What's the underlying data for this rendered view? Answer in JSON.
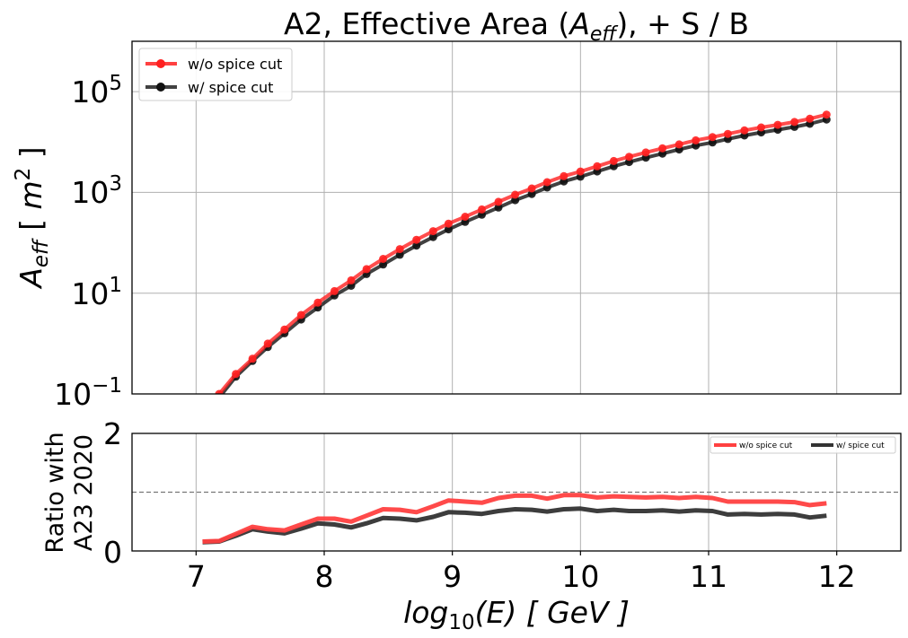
{
  "chart_data": [
    {
      "type": "line",
      "title_main": "A2, Effective Area (",
      "title_sym": "A",
      "title_sub": "eff",
      "title_tail": "), + S / B",
      "ylabel_main": "A",
      "ylabel_sub": "eff",
      "ylabel_tail": " [ ",
      "ylabel_unit": "m",
      "ylabel_exp": "2",
      "ylabel_close": " ]",
      "yscale": "log",
      "xlim": [
        6.5,
        12.5
      ],
      "ylim": [
        0.1,
        1000000
      ],
      "y_ticks": [
        {
          "base": "10",
          "exp": "−1",
          "value": 0.1
        },
        {
          "base": "10",
          "exp": "1",
          "value": 10
        },
        {
          "base": "10",
          "exp": "3",
          "value": 1000
        },
        {
          "base": "10",
          "exp": "5",
          "value": 100000
        }
      ],
      "grid": true,
      "legend_position": "top-left",
      "x": [
        7.05,
        7.18,
        7.31,
        7.44,
        7.56,
        7.69,
        7.82,
        7.95,
        8.08,
        8.21,
        8.33,
        8.46,
        8.59,
        8.72,
        8.85,
        8.97,
        9.1,
        9.23,
        9.36,
        9.49,
        9.62,
        9.74,
        9.87,
        10.0,
        10.13,
        10.26,
        10.38,
        10.51,
        10.64,
        10.77,
        10.9,
        11.03,
        11.15,
        11.28,
        11.41,
        11.54,
        11.67,
        11.79,
        11.92
      ],
      "series": [
        {
          "name": "w/o spice cut",
          "color": "#ff2020",
          "values": [
            0.035,
            0.1,
            0.25,
            0.5,
            1.0,
            1.9,
            3.7,
            6.5,
            11,
            18,
            30,
            48,
            75,
            115,
            170,
            240,
            330,
            460,
            650,
            900,
            1200,
            1600,
            2100,
            2600,
            3300,
            4200,
            5100,
            6200,
            7500,
            9000,
            10800,
            12500,
            14500,
            17000,
            19500,
            22000,
            25000,
            29000,
            35000
          ]
        },
        {
          "name": "w/ spice cut",
          "color": "#111111",
          "values": [
            0.03,
            0.085,
            0.22,
            0.45,
            0.85,
            1.6,
            3.0,
            5.2,
            9.0,
            14,
            24,
            37,
            58,
            88,
            130,
            185,
            260,
            360,
            500,
            700,
            930,
            1250,
            1650,
            2050,
            2600,
            3300,
            4000,
            4900,
            5900,
            7100,
            8500,
            9800,
            11500,
            13500,
            15500,
            17500,
            20000,
            23000,
            28000
          ]
        }
      ]
    },
    {
      "type": "line",
      "ylabel_line1": "Ratio with",
      "ylabel_line2": "A23 2020",
      "xlabel_main": "log",
      "xlabel_sub": "10",
      "xlabel_tail": "(E) [ GeV ]",
      "xlim": [
        6.5,
        12.5
      ],
      "ylim": [
        0,
        2
      ],
      "x_ticks": [
        "7",
        "8",
        "9",
        "10",
        "11",
        "12"
      ],
      "y_ticks": [
        "0",
        "2"
      ],
      "reference_line": 1.0,
      "grid": true,
      "legend_position": "top-right",
      "x": [
        7.05,
        7.18,
        7.31,
        7.44,
        7.56,
        7.69,
        7.82,
        7.95,
        8.08,
        8.21,
        8.33,
        8.46,
        8.59,
        8.72,
        8.85,
        8.97,
        9.1,
        9.23,
        9.36,
        9.49,
        9.62,
        9.74,
        9.87,
        10.0,
        10.13,
        10.26,
        10.38,
        10.51,
        10.64,
        10.77,
        10.9,
        11.03,
        11.15,
        11.28,
        11.41,
        11.54,
        11.67,
        11.79,
        11.92
      ],
      "series": [
        {
          "name": "w/o spice cut",
          "color": "#ff4040",
          "values": [
            0.16,
            0.17,
            0.29,
            0.41,
            0.37,
            0.35,
            0.45,
            0.55,
            0.55,
            0.5,
            0.6,
            0.71,
            0.7,
            0.66,
            0.76,
            0.86,
            0.84,
            0.82,
            0.9,
            0.94,
            0.94,
            0.89,
            0.95,
            0.95,
            0.91,
            0.93,
            0.92,
            0.91,
            0.92,
            0.9,
            0.92,
            0.9,
            0.84,
            0.84,
            0.84,
            0.84,
            0.83,
            0.78,
            0.81
          ]
        },
        {
          "name": "w/ spice cut",
          "color": "#333333",
          "values": [
            0.15,
            0.16,
            0.26,
            0.37,
            0.33,
            0.3,
            0.38,
            0.47,
            0.45,
            0.4,
            0.47,
            0.56,
            0.55,
            0.52,
            0.58,
            0.66,
            0.65,
            0.63,
            0.68,
            0.71,
            0.7,
            0.67,
            0.71,
            0.72,
            0.68,
            0.7,
            0.68,
            0.68,
            0.69,
            0.67,
            0.69,
            0.68,
            0.62,
            0.63,
            0.62,
            0.63,
            0.62,
            0.57,
            0.6
          ]
        }
      ]
    }
  ]
}
